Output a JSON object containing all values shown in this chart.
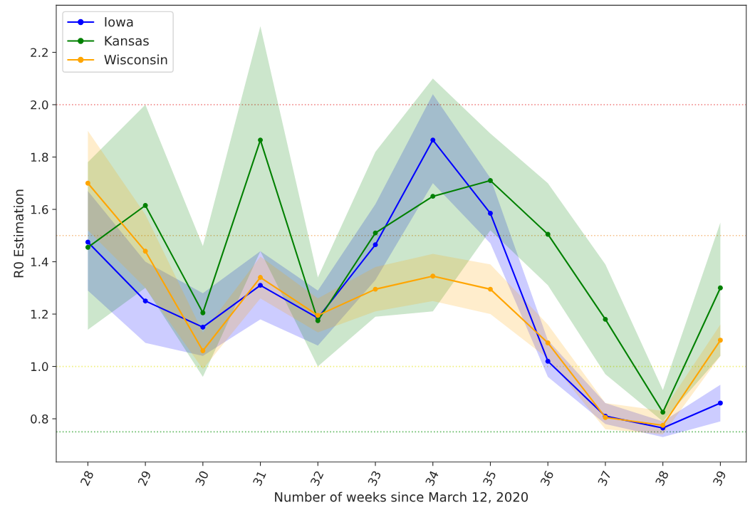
{
  "chart_data": {
    "type": "line",
    "xlabel": "Number of weeks since March 12, 2020",
    "ylabel": "R0 Estimation",
    "x": [
      28,
      29,
      30,
      31,
      32,
      33,
      34,
      35,
      36,
      37,
      38,
      39
    ],
    "series": [
      {
        "name": "Iowa",
        "color": "#0000ff",
        "values": [
          1.475,
          1.25,
          1.15,
          1.31,
          1.185,
          1.465,
          1.865,
          1.585,
          1.02,
          0.81,
          0.765,
          0.86
        ],
        "lower": [
          1.29,
          1.09,
          1.04,
          1.18,
          1.08,
          1.33,
          1.7,
          1.47,
          0.96,
          0.78,
          0.73,
          0.79
        ],
        "upper": [
          1.67,
          1.4,
          1.28,
          1.44,
          1.29,
          1.62,
          2.04,
          1.72,
          1.1,
          0.86,
          0.79,
          0.93
        ]
      },
      {
        "name": "Kansas",
        "color": "#008000",
        "values": [
          1.455,
          1.615,
          1.205,
          1.865,
          1.175,
          1.51,
          1.65,
          1.71,
          1.505,
          1.18,
          0.825,
          1.3
        ],
        "lower": [
          1.14,
          1.3,
          0.96,
          1.44,
          1.0,
          1.19,
          1.21,
          1.52,
          1.31,
          0.97,
          0.79,
          1.04
        ],
        "upper": [
          1.78,
          2.0,
          1.46,
          2.3,
          1.34,
          1.82,
          2.1,
          1.89,
          1.7,
          1.39,
          0.91,
          1.55
        ]
      },
      {
        "name": "Wisconsin",
        "color": "#ffa500",
        "values": [
          1.7,
          1.44,
          1.06,
          1.34,
          1.195,
          1.295,
          1.345,
          1.295,
          1.09,
          0.805,
          0.775,
          1.1
        ],
        "lower": [
          1.52,
          1.3,
          0.99,
          1.26,
          1.13,
          1.21,
          1.25,
          1.2,
          1.03,
          0.76,
          0.74,
          1.04
        ],
        "upper": [
          1.9,
          1.58,
          1.13,
          1.42,
          1.26,
          1.38,
          1.43,
          1.39,
          1.16,
          0.86,
          0.83,
          1.16
        ]
      }
    ],
    "xlim": [
      27.45,
      39.45
    ],
    "ylim": [
      0.635,
      2.38
    ],
    "xticks": [
      28,
      29,
      30,
      31,
      32,
      33,
      34,
      35,
      36,
      37,
      38,
      39
    ],
    "yticks": [
      0.8,
      {
        "value": 1,
        "label": "1.0"
      },
      1.2,
      1.4,
      1.6,
      1.8,
      {
        "value": 2,
        "label": "2.0"
      },
      2.2
    ],
    "ref_lines": [
      {
        "axis": "y",
        "value": 2.0,
        "color": "#f08080",
        "line_style": "dotted"
      },
      {
        "axis": "y",
        "value": 1.5,
        "color": "#f5c08a",
        "line_style": "dotted"
      },
      {
        "axis": "y",
        "value": 1.0,
        "color": "#f0f080",
        "line_style": "dotted"
      },
      {
        "axis": "y",
        "value": 0.75,
        "color": "#66bb66",
        "line_style": "dotted"
      }
    ],
    "grid": false,
    "legend": "top left",
    "marker": "circle",
    "line_style": "solid"
  }
}
